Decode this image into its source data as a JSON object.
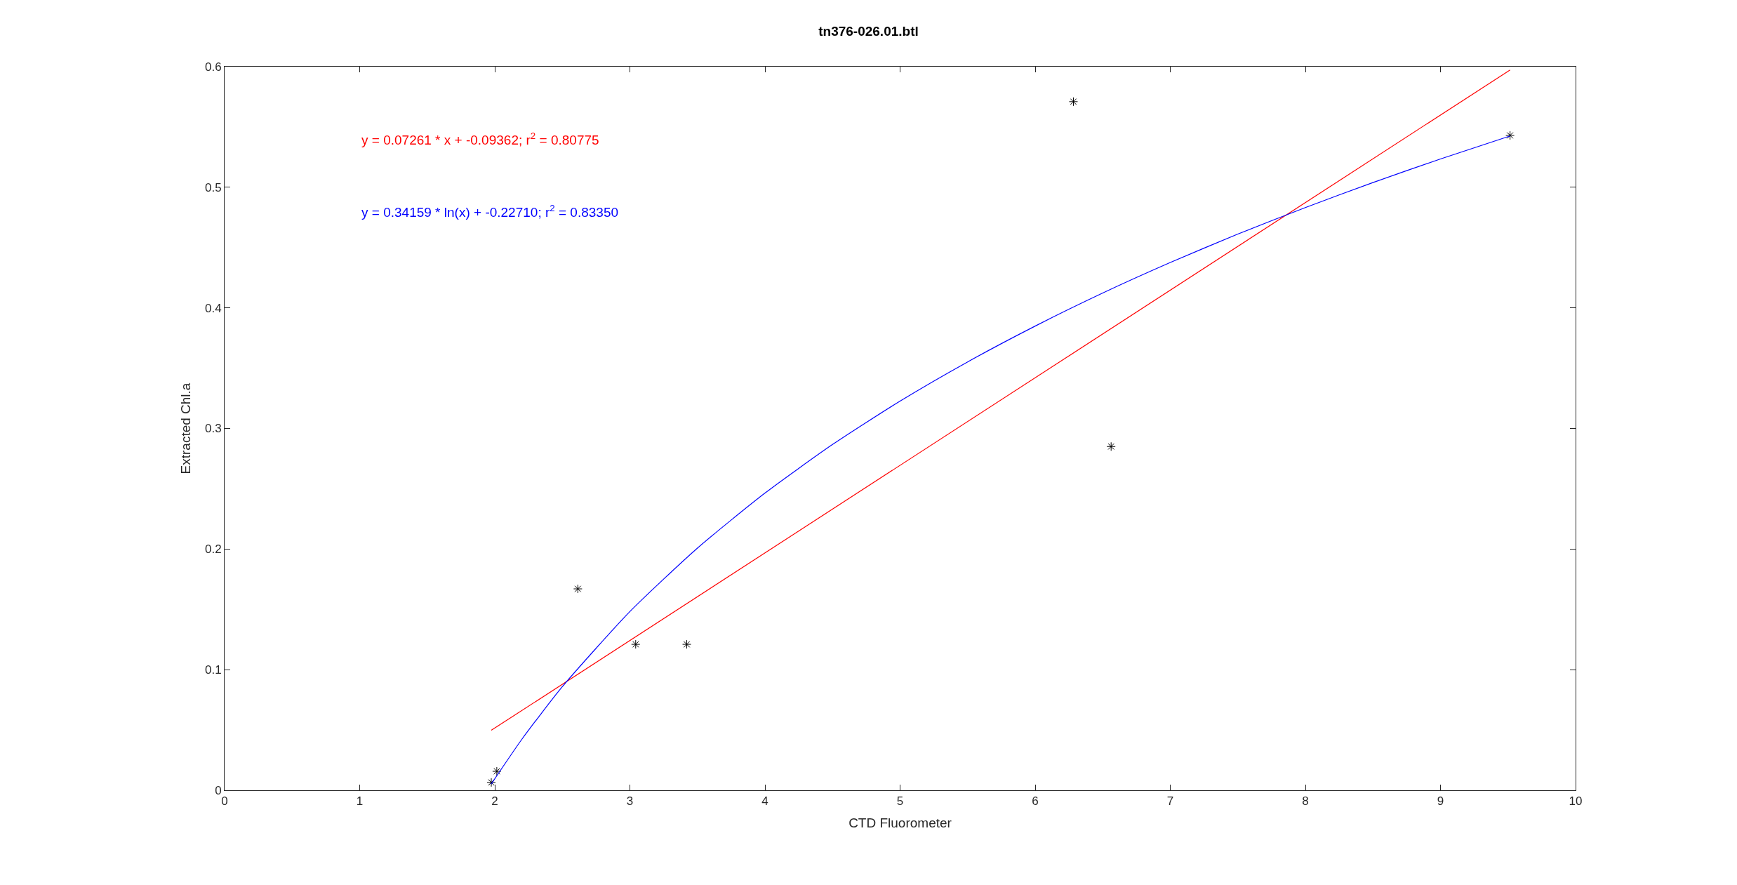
{
  "chart_data": {
    "type": "scatter",
    "title": "tn376-026.01.btl",
    "xlabel": "CTD Fluorometer",
    "ylabel": "Extracted Chl.a",
    "xlim": [
      0,
      10
    ],
    "xticks": [
      0,
      1,
      2,
      3,
      4,
      5,
      6,
      7,
      8,
      9,
      10
    ],
    "ylim": [
      0,
      0.6
    ],
    "yticks": [
      0,
      0.1,
      0.2,
      0.3,
      0.4,
      0.5,
      0.6
    ],
    "grid": false,
    "annotations": [
      "y = 0.07261 * x + -0.09362; r$^{2}$ = 0.80775",
      "y = 0.34159 * ln(x) + -0.22710; r$^{2}$ = 0.83350"
    ],
    "series": [
      {
        "color": "#000000",
        "marker": "cross",
        "x": [
          1.974,
          2.015,
          2.615,
          3.043,
          3.421,
          6.283,
          6.562,
          9.515
        ],
        "values": [
          0.0065,
          0.0157,
          0.167,
          0.121,
          0.121,
          0.571,
          0.285,
          0.543
        ]
      },
      {
        "type": "line",
        "color": "#ff0000",
        "marker": "none",
        "line_style": "solid",
        "x": [
          1.974,
          9.515
        ],
        "values": [
          0.0497,
          0.5973
        ]
      },
      {
        "type": "line",
        "color": "#0000ff",
        "marker": "none",
        "line_style": "solid",
        "x": [
          1.974,
          2.2,
          2.5,
          3,
          3.5,
          4,
          4.5,
          5,
          5.5,
          6,
          6.5,
          7,
          7.5,
          8,
          8.5,
          9,
          9.515
        ],
        "values": [
          0.0052,
          0.0422,
          0.0859,
          0.1482,
          0.2008,
          0.2464,
          0.2867,
          0.3227,
          0.3552,
          0.3849,
          0.4123,
          0.4376,
          0.4612,
          0.4832,
          0.5039,
          0.5235,
          0.5425
        ]
      }
    ]
  }
}
